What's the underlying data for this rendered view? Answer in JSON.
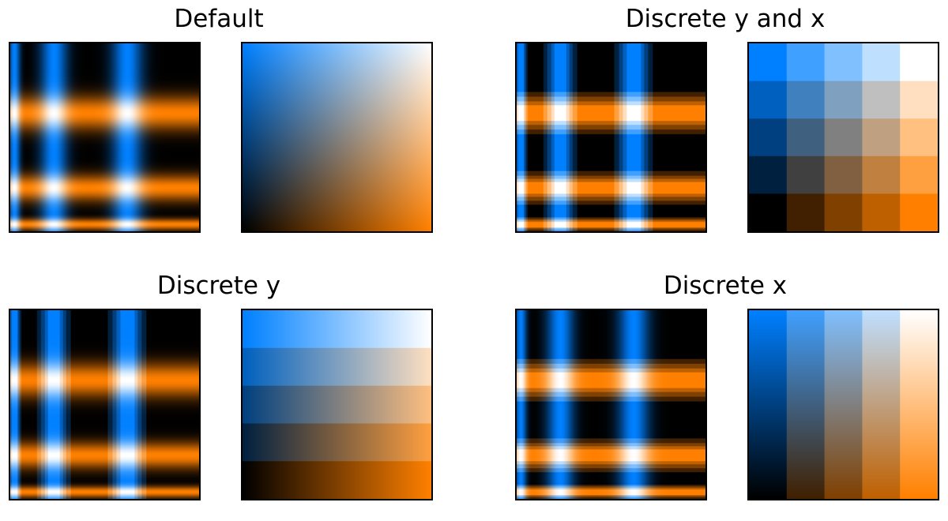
{
  "colors": {
    "blue": "#0080ff",
    "orange": "#ff8000",
    "white": "#ffffff",
    "black": "#000000"
  },
  "chart_data": [
    {
      "title": "Default",
      "panels": [
        {
          "type": "heatmap",
          "content": "pattern",
          "discrete_y": false,
          "discrete_x": false,
          "levels": 5
        },
        {
          "type": "heatmap",
          "content": "colormap-key",
          "discrete_y": false,
          "discrete_x": false,
          "levels": 5
        }
      ]
    },
    {
      "title": "Discrete y and x",
      "panels": [
        {
          "type": "heatmap",
          "content": "pattern",
          "discrete_y": true,
          "discrete_x": true,
          "levels": 5
        },
        {
          "type": "heatmap",
          "content": "colormap-key",
          "discrete_y": true,
          "discrete_x": true,
          "levels": 5
        }
      ]
    },
    {
      "title": "Discrete y",
      "panels": [
        {
          "type": "heatmap",
          "content": "pattern",
          "discrete_y": true,
          "discrete_x": false,
          "levels": 5
        },
        {
          "type": "heatmap",
          "content": "colormap-key",
          "discrete_y": true,
          "discrete_x": false,
          "levels": 5
        }
      ]
    },
    {
      "title": "Discrete x",
      "panels": [
        {
          "type": "heatmap",
          "content": "pattern",
          "discrete_y": false,
          "discrete_x": true,
          "levels": 5
        },
        {
          "type": "heatmap",
          "content": "colormap-key",
          "discrete_y": false,
          "discrete_x": true,
          "levels": 5
        }
      ]
    }
  ]
}
